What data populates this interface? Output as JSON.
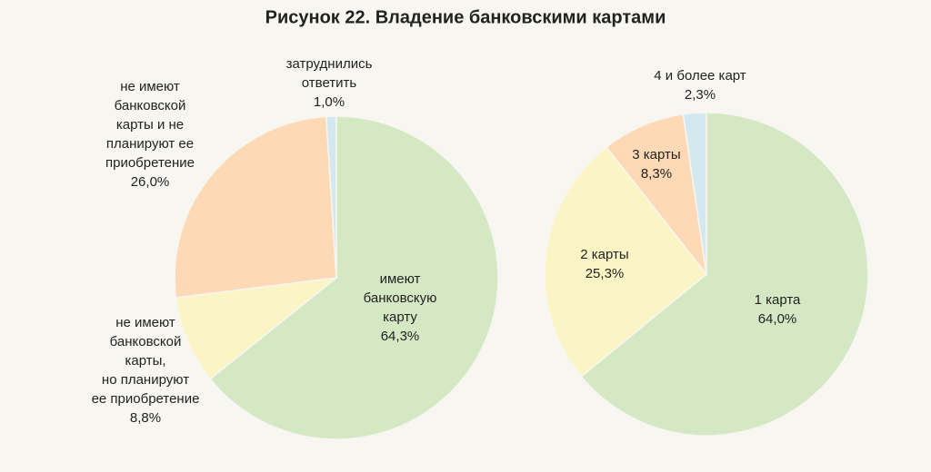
{
  "title": "Рисунок 22. Владение банковскими картами",
  "chart_data": [
    {
      "type": "pie",
      "categories": [
        "имеют\nбанковскую\nкарту",
        "не имеют\nбанковской\nкарты,\nно планируют\nее приобретение",
        "не имеют\nбанковской\nкарты и не\nпланируют ее\nприобретение",
        "затруднились\nответить"
      ],
      "values": [
        64.3,
        8.8,
        26.0,
        1.0
      ],
      "value_labels": [
        "64,3%",
        "8,8%",
        "26,0%",
        "1,0%"
      ],
      "colors": [
        "#d5e8c4",
        "#fbf5c6",
        "#fdd9b6",
        "#d3e8ef"
      ]
    },
    {
      "type": "pie",
      "categories": [
        "1 карта",
        "2 карты",
        "3 карты",
        "4 и более карт"
      ],
      "values": [
        64.0,
        25.3,
        8.3,
        2.3
      ],
      "value_labels": [
        "64,0%",
        "25,3%",
        "8,3%",
        "2,3%"
      ],
      "colors": [
        "#d5e8c4",
        "#fbf5c6",
        "#fdd9b6",
        "#d3e8ef"
      ]
    }
  ]
}
